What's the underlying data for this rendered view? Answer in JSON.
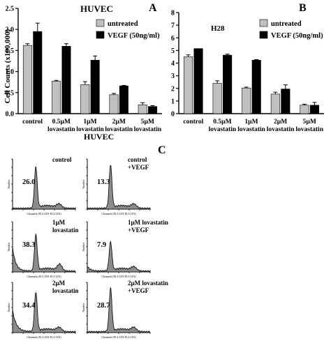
{
  "chart_data": [
    {
      "type": "bar",
      "panel": "A",
      "title": "HUVEC",
      "ylabel": "Cell Counts (x100,000)",
      "ylim": [
        0,
        2.5
      ],
      "yticks": [
        "0.0",
        "0.5",
        "1.0",
        "1.5",
        "2.0",
        "2.5"
      ],
      "categories": [
        [
          "control"
        ],
        [
          "0.5µM",
          "lovastatin"
        ],
        [
          "1µM",
          "lovastatin"
        ],
        [
          "2µM",
          "lovastatin"
        ],
        [
          "5µM",
          "lovastatin"
        ]
      ],
      "series": [
        {
          "name": "untreated",
          "color": "#c0c0c0",
          "values": [
            1.62,
            0.77,
            0.69,
            0.45,
            0.21
          ],
          "errors": [
            0.04,
            0.02,
            0.07,
            0.03,
            0.05
          ]
        },
        {
          "name": "VEGF (50ng/ml)",
          "color": "#000000",
          "values": [
            1.95,
            1.6,
            1.27,
            0.66,
            0.17
          ],
          "errors": [
            0.2,
            0.06,
            0.1,
            0.01,
            0.02
          ]
        }
      ],
      "legend": "top-right"
    },
    {
      "type": "bar",
      "panel": "B",
      "title": "H28",
      "ylim": [
        0,
        8
      ],
      "yticks": [
        "0",
        "1",
        "2",
        "3",
        "4",
        "5",
        "6",
        "7",
        "8"
      ],
      "categories": [
        [
          "control"
        ],
        [
          "0.5µM",
          "lovastatin"
        ],
        [
          "1µM",
          "lovastatin"
        ],
        [
          "2µM",
          "lovastatin"
        ],
        [
          "5µM",
          "lovastatin"
        ]
      ],
      "series": [
        {
          "name": "untreated",
          "color": "#c0c0c0",
          "values": [
            4.5,
            2.4,
            2.03,
            1.55,
            0.67
          ],
          "errors": [
            0.15,
            0.2,
            0.07,
            0.15,
            0.08
          ]
        },
        {
          "name": "VEGF (50ng/ml)",
          "color": "#000000",
          "values": [
            5.15,
            4.63,
            4.23,
            1.95,
            0.67
          ],
          "errors": [
            0.0,
            0.08,
            0.05,
            0.33,
            0.22
          ]
        }
      ],
      "legend": "top-right"
    }
  ],
  "histograms": {
    "panel": "C",
    "title": "HUVEC",
    "y_axis_label": "Number",
    "x_axis_label": "Channels (FL3-LIN-FL3-LIN)",
    "x_axis_label_short": "Channels (FL3-LIN-FL3-LIN)",
    "items": [
      {
        "label": [
          "control"
        ],
        "percent": "26.0",
        "peak": 0.86
      },
      {
        "label": [
          "control",
          "+VEGF"
        ],
        "percent": "13.3",
        "peak": 0.9
      },
      {
        "label": [
          "1µM",
          "lovastatin"
        ],
        "percent": "38.3",
        "peak": 0.75
      },
      {
        "label": [
          "1µM lovastatin",
          "+VEGF"
        ],
        "percent": "7.9",
        "peak": 0.6
      },
      {
        "label": [
          "2µM",
          "lovastatin"
        ],
        "percent": "34.4",
        "peak": 0.82
      },
      {
        "label": [
          "2µM lovastatin",
          "+VEGF"
        ],
        "percent": "28.7",
        "peak": 0.9
      }
    ]
  }
}
